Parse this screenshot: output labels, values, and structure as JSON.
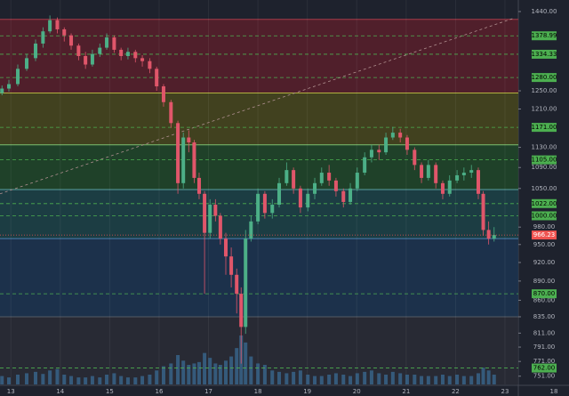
{
  "chart_data": {
    "type": "candlestick",
    "xlim": [
      12.78,
      23.27
    ],
    "xticks": [
      13,
      14,
      15,
      16,
      17,
      18,
      19,
      20,
      21,
      22,
      23
    ],
    "time_label": "18",
    "ylim": [
      740,
      1470
    ],
    "log_scale": true,
    "yticks": [
      {
        "value": 1440,
        "label": "1440.00"
      },
      {
        "value": 1250,
        "label": "1250.00"
      },
      {
        "value": 1210,
        "label": "1210.00"
      },
      {
        "value": 1130,
        "label": "1130.00"
      },
      {
        "value": 1090,
        "label": "1090.00"
      },
      {
        "value": 1050,
        "label": "1050.00"
      },
      {
        "value": 980,
        "label": "980.00"
      },
      {
        "value": 950,
        "label": "950.00"
      },
      {
        "value": 920,
        "label": "920.00"
      },
      {
        "value": 890,
        "label": "890.00"
      },
      {
        "value": 860,
        "label": "860.00"
      },
      {
        "value": 835,
        "label": "835.00"
      },
      {
        "value": 811,
        "label": "811.00"
      },
      {
        "value": 791,
        "label": "791.00"
      },
      {
        "value": 771,
        "label": "771.00"
      },
      {
        "value": 751,
        "label": "751.00"
      }
    ],
    "levels": [
      1378.99,
      1334.33,
      {
        "value": 1280,
        "label": "1280.00"
      },
      {
        "value": 1171,
        "label": "1171.00"
      },
      {
        "value": 1105,
        "label": "1105.00"
      },
      {
        "value": 1022,
        "label": "1022.00"
      },
      {
        "value": 1000,
        "label": "1000.00"
      },
      {
        "value": 870,
        "label": "870.00"
      },
      {
        "value": 762,
        "label": "762.00"
      }
    ],
    "level_color": "#4caf50",
    "current_price": 966.23,
    "current_color": "#ef5350",
    "zones": [
      {
        "from": 1420,
        "to": 1245,
        "color": "#5c1f2b",
        "border": "#a83a4a"
      },
      {
        "from": 1245,
        "to": 1135,
        "color": "#4a4a1c",
        "border": "#b0b040"
      },
      {
        "from": 1135,
        "to": 1048,
        "color": "#1f4a28",
        "border": "#7ac070"
      },
      {
        "from": 1048,
        "to": 960,
        "color": "#1c4548",
        "border": "#5aa0a0"
      },
      {
        "from": 960,
        "to": 835,
        "color": "#1c3652",
        "border": "#4a80b0"
      },
      {
        "from": 835,
        "to": 740,
        "color": "#2a2d36",
        "border": "#555a66"
      }
    ],
    "trendline": {
      "x": [
        12.78,
        23.2
      ],
      "y": [
        1040,
        1424
      ],
      "color": "#b09090"
    },
    "up_color": "#4caf87",
    "down_color": "#e0566a",
    "volume_color": "#3a6f9a",
    "candles": {
      "x": [
        12.82,
        12.96,
        13.14,
        13.32,
        13.5,
        13.65,
        13.79,
        13.94,
        14.08,
        14.22,
        14.37,
        14.51,
        14.65,
        14.8,
        14.94,
        15.09,
        15.23,
        15.37,
        15.52,
        15.66,
        15.81,
        15.95,
        16.09,
        16.24,
        16.38,
        16.49,
        16.6,
        16.71,
        16.81,
        16.92,
        17.03,
        17.14,
        17.24,
        17.35,
        17.46,
        17.57,
        17.66,
        17.75,
        17.86,
        18.0,
        18.14,
        18.29,
        18.43,
        18.58,
        18.72,
        18.86,
        19.01,
        19.15,
        19.29,
        19.44,
        19.58,
        19.73,
        19.87,
        20.01,
        20.16,
        20.3,
        20.45,
        20.59,
        20.73,
        20.88,
        21.02,
        21.17,
        21.31,
        21.45,
        21.6,
        21.74,
        21.88,
        22.03,
        22.17,
        22.32,
        22.46,
        22.56,
        22.67,
        22.78
      ],
      "open": [
        1245,
        1255,
        1265,
        1300,
        1325,
        1360,
        1390,
        1418,
        1395,
        1380,
        1355,
        1330,
        1310,
        1335,
        1350,
        1375,
        1345,
        1330,
        1340,
        1325,
        1318,
        1300,
        1260,
        1225,
        1180,
        1060,
        1150,
        1140,
        1070,
        1040,
        970,
        1020,
        1000,
        960,
        930,
        900,
        870,
        820,
        960,
        990,
        1040,
        1005,
        1020,
        1060,
        1085,
        1050,
        1015,
        1040,
        1060,
        1080,
        1065,
        1045,
        1025,
        1050,
        1080,
        1110,
        1125,
        1120,
        1150,
        1160,
        1150,
        1125,
        1095,
        1070,
        1095,
        1060,
        1040,
        1065,
        1075,
        1080,
        1085,
        1040,
        975,
        960
      ],
      "high": [
        1262,
        1275,
        1310,
        1335,
        1370,
        1400,
        1430,
        1425,
        1400,
        1385,
        1360,
        1340,
        1345,
        1360,
        1385,
        1380,
        1350,
        1350,
        1345,
        1332,
        1325,
        1305,
        1265,
        1230,
        1185,
        1160,
        1165,
        1145,
        1080,
        1045,
        1030,
        1030,
        1005,
        970,
        945,
        910,
        880,
        975,
        1000,
        1050,
        1045,
        1030,
        1070,
        1100,
        1090,
        1055,
        1050,
        1070,
        1090,
        1095,
        1070,
        1050,
        1060,
        1090,
        1120,
        1135,
        1135,
        1160,
        1172,
        1168,
        1155,
        1130,
        1100,
        1105,
        1100,
        1065,
        1075,
        1085,
        1090,
        1095,
        1090,
        1045,
        990,
        980
      ],
      "low": [
        1240,
        1248,
        1260,
        1295,
        1318,
        1350,
        1385,
        1385,
        1365,
        1345,
        1320,
        1300,
        1305,
        1328,
        1345,
        1338,
        1320,
        1322,
        1315,
        1305,
        1290,
        1250,
        1215,
        1170,
        1040,
        1050,
        1120,
        1060,
        1030,
        870,
        960,
        990,
        950,
        900,
        880,
        840,
        768,
        810,
        955,
        985,
        995,
        995,
        1015,
        1055,
        1040,
        1005,
        1008,
        1030,
        1055,
        1055,
        1035,
        1015,
        1020,
        1045,
        1075,
        1100,
        1105,
        1115,
        1145,
        1140,
        1115,
        1085,
        1060,
        1065,
        1050,
        1030,
        1035,
        1060,
        1065,
        1070,
        1030,
        965,
        950,
        955
      ],
      "close": [
        1255,
        1265,
        1300,
        1325,
        1360,
        1390,
        1418,
        1395,
        1380,
        1355,
        1330,
        1310,
        1335,
        1350,
        1375,
        1345,
        1330,
        1340,
        1325,
        1318,
        1300,
        1260,
        1225,
        1180,
        1060,
        1150,
        1140,
        1070,
        1040,
        970,
        1020,
        1000,
        960,
        930,
        900,
        870,
        820,
        960,
        990,
        1040,
        1005,
        1020,
        1060,
        1085,
        1050,
        1015,
        1040,
        1060,
        1080,
        1065,
        1045,
        1025,
        1050,
        1080,
        1110,
        1125,
        1120,
        1150,
        1160,
        1150,
        1125,
        1095,
        1070,
        1095,
        1060,
        1040,
        1065,
        1075,
        1080,
        1085,
        1040,
        975,
        960,
        966.23
      ],
      "volume": [
        12,
        10,
        14,
        16,
        18,
        15,
        20,
        22,
        14,
        12,
        10,
        10,
        12,
        10,
        14,
        16,
        12,
        10,
        10,
        12,
        14,
        20,
        26,
        30,
        42,
        34,
        28,
        30,
        32,
        45,
        38,
        30,
        28,
        34,
        40,
        52,
        70,
        60,
        40,
        30,
        28,
        20,
        18,
        16,
        18,
        20,
        14,
        12,
        12,
        14,
        16,
        14,
        12,
        16,
        18,
        20,
        16,
        14,
        18,
        16,
        14,
        14,
        12,
        12,
        12,
        14,
        12,
        14,
        12,
        12,
        16,
        24,
        20,
        14
      ]
    }
  }
}
